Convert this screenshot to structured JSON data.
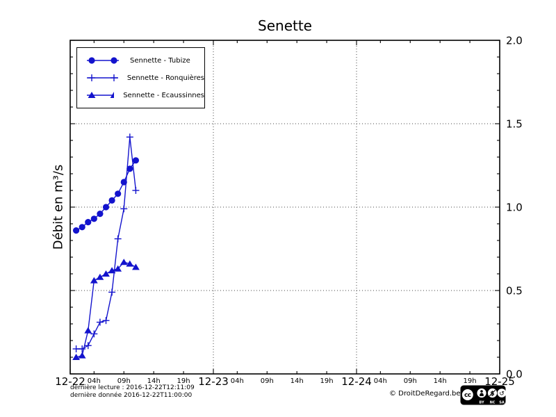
{
  "chart_data": {
    "type": "line",
    "title": "Senette",
    "ylabel": "Débit en m³/s",
    "ylim": [
      0.0,
      2.0
    ],
    "y_ticks": [
      0.0,
      0.5,
      1.0,
      1.5,
      2.0
    ],
    "y_minor_step": 0.1,
    "x_range_hours": 72,
    "x_day_labels": [
      "12-22",
      "12-23",
      "12-24",
      "12-25"
    ],
    "x_hour_tick_labels": [
      "04h",
      "09h",
      "14h",
      "19h"
    ],
    "x_hour_tick_hours": [
      4,
      9,
      14,
      19
    ],
    "grid": "dotted",
    "legend_position": "upper-left",
    "series_color": "#1313cd",
    "series": [
      {
        "name": "Sennette - Tubize",
        "marker": "circle",
        "x_hours_from_day0": [
          1,
          2,
          3,
          4,
          5,
          6,
          7,
          8,
          9,
          10,
          11
        ],
        "values": [
          0.86,
          0.88,
          0.91,
          0.93,
          0.96,
          1.0,
          1.04,
          1.08,
          1.15,
          1.23,
          1.28
        ]
      },
      {
        "name": "Sennette - Ronquières",
        "marker": "plus",
        "x_hours_from_day0": [
          1,
          2,
          3,
          4,
          5,
          6,
          7,
          8,
          9,
          10,
          11
        ],
        "values": [
          0.15,
          0.15,
          0.17,
          0.24,
          0.31,
          0.32,
          0.49,
          0.81,
          0.99,
          1.42,
          1.1
        ]
      },
      {
        "name": "Sennette - Ecaussinnes",
        "marker": "triangle",
        "x_hours_from_day0": [
          1,
          2,
          3,
          4,
          5,
          6,
          7,
          8,
          9,
          10,
          11
        ],
        "values": [
          0.1,
          0.11,
          0.26,
          0.56,
          0.58,
          0.6,
          0.62,
          0.63,
          0.67,
          0.66,
          0.64
        ]
      }
    ]
  },
  "footer": {
    "last_read": "dernière lecture : 2016-12-22T12:11:09",
    "last_data": "dernière donnée  2016-12-22T11:00:00",
    "copyright": "© DroitDeRegard.be",
    "license": {
      "cc": "cc",
      "labels": [
        "BY",
        "NC",
        "SA"
      ]
    }
  }
}
